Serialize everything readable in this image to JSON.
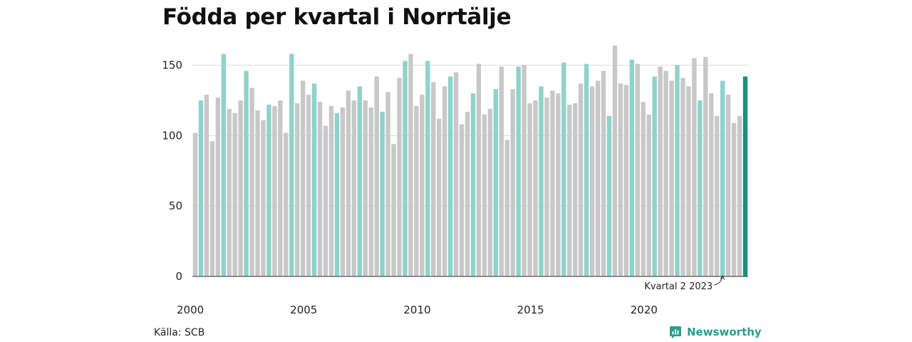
{
  "chart_data": {
    "type": "bar",
    "title": "Födda per kvartal i Norrtälje",
    "xlabel": "",
    "ylabel": "",
    "ylim": [
      0,
      170
    ],
    "y_ticks": [
      0,
      50,
      100,
      150
    ],
    "x_tick_labels": [
      "2000",
      "2005",
      "2010",
      "2015",
      "2020"
    ],
    "grid": true,
    "source": "Källa: SCB",
    "annotation": "Kvartal 2 2023",
    "colors": {
      "q2": "#8dd3cc",
      "other": "#c8c8c8",
      "latest": "#1a8f80",
      "grid": "#dddddd",
      "axis": "#333333"
    },
    "periods": [
      {
        "year": 2000,
        "quarter": 1,
        "value": 102
      },
      {
        "year": 2000,
        "quarter": 2,
        "value": 125
      },
      {
        "year": 2000,
        "quarter": 3,
        "value": 129
      },
      {
        "year": 2000,
        "quarter": 4,
        "value": 96
      },
      {
        "year": 2001,
        "quarter": 1,
        "value": 127
      },
      {
        "year": 2001,
        "quarter": 2,
        "value": 158
      },
      {
        "year": 2001,
        "quarter": 3,
        "value": 119
      },
      {
        "year": 2001,
        "quarter": 4,
        "value": 116
      },
      {
        "year": 2002,
        "quarter": 1,
        "value": 125
      },
      {
        "year": 2002,
        "quarter": 2,
        "value": 146
      },
      {
        "year": 2002,
        "quarter": 3,
        "value": 134
      },
      {
        "year": 2002,
        "quarter": 4,
        "value": 118
      },
      {
        "year": 2003,
        "quarter": 1,
        "value": 111
      },
      {
        "year": 2003,
        "quarter": 2,
        "value": 122
      },
      {
        "year": 2003,
        "quarter": 3,
        "value": 121
      },
      {
        "year": 2003,
        "quarter": 4,
        "value": 125
      },
      {
        "year": 2004,
        "quarter": 1,
        "value": 102
      },
      {
        "year": 2004,
        "quarter": 2,
        "value": 158
      },
      {
        "year": 2004,
        "quarter": 3,
        "value": 123
      },
      {
        "year": 2004,
        "quarter": 4,
        "value": 139
      },
      {
        "year": 2005,
        "quarter": 1,
        "value": 129
      },
      {
        "year": 2005,
        "quarter": 2,
        "value": 137
      },
      {
        "year": 2005,
        "quarter": 3,
        "value": 124
      },
      {
        "year": 2005,
        "quarter": 4,
        "value": 107
      },
      {
        "year": 2006,
        "quarter": 1,
        "value": 121
      },
      {
        "year": 2006,
        "quarter": 2,
        "value": 116
      },
      {
        "year": 2006,
        "quarter": 3,
        "value": 120
      },
      {
        "year": 2006,
        "quarter": 4,
        "value": 132
      },
      {
        "year": 2007,
        "quarter": 1,
        "value": 125
      },
      {
        "year": 2007,
        "quarter": 2,
        "value": 135
      },
      {
        "year": 2007,
        "quarter": 3,
        "value": 125
      },
      {
        "year": 2007,
        "quarter": 4,
        "value": 120
      },
      {
        "year": 2008,
        "quarter": 1,
        "value": 142
      },
      {
        "year": 2008,
        "quarter": 2,
        "value": 117
      },
      {
        "year": 2008,
        "quarter": 3,
        "value": 131
      },
      {
        "year": 2008,
        "quarter": 4,
        "value": 94
      },
      {
        "year": 2009,
        "quarter": 1,
        "value": 141
      },
      {
        "year": 2009,
        "quarter": 2,
        "value": 153
      },
      {
        "year": 2009,
        "quarter": 3,
        "value": 158
      },
      {
        "year": 2009,
        "quarter": 4,
        "value": 121
      },
      {
        "year": 2010,
        "quarter": 1,
        "value": 129
      },
      {
        "year": 2010,
        "quarter": 2,
        "value": 153
      },
      {
        "year": 2010,
        "quarter": 3,
        "value": 138
      },
      {
        "year": 2010,
        "quarter": 4,
        "value": 112
      },
      {
        "year": 2011,
        "quarter": 1,
        "value": 135
      },
      {
        "year": 2011,
        "quarter": 2,
        "value": 142
      },
      {
        "year": 2011,
        "quarter": 3,
        "value": 145
      },
      {
        "year": 2011,
        "quarter": 4,
        "value": 108
      },
      {
        "year": 2012,
        "quarter": 1,
        "value": 117
      },
      {
        "year": 2012,
        "quarter": 2,
        "value": 130
      },
      {
        "year": 2012,
        "quarter": 3,
        "value": 151
      },
      {
        "year": 2012,
        "quarter": 4,
        "value": 115
      },
      {
        "year": 2013,
        "quarter": 1,
        "value": 119
      },
      {
        "year": 2013,
        "quarter": 2,
        "value": 133
      },
      {
        "year": 2013,
        "quarter": 3,
        "value": 149
      },
      {
        "year": 2013,
        "quarter": 4,
        "value": 97
      },
      {
        "year": 2014,
        "quarter": 1,
        "value": 133
      },
      {
        "year": 2014,
        "quarter": 2,
        "value": 149
      },
      {
        "year": 2014,
        "quarter": 3,
        "value": 150
      },
      {
        "year": 2014,
        "quarter": 4,
        "value": 123
      },
      {
        "year": 2015,
        "quarter": 1,
        "value": 125
      },
      {
        "year": 2015,
        "quarter": 2,
        "value": 135
      },
      {
        "year": 2015,
        "quarter": 3,
        "value": 127
      },
      {
        "year": 2015,
        "quarter": 4,
        "value": 132
      },
      {
        "year": 2016,
        "quarter": 1,
        "value": 130
      },
      {
        "year": 2016,
        "quarter": 2,
        "value": 152
      },
      {
        "year": 2016,
        "quarter": 3,
        "value": 122
      },
      {
        "year": 2016,
        "quarter": 4,
        "value": 123
      },
      {
        "year": 2017,
        "quarter": 1,
        "value": 137
      },
      {
        "year": 2017,
        "quarter": 2,
        "value": 151
      },
      {
        "year": 2017,
        "quarter": 3,
        "value": 135
      },
      {
        "year": 2017,
        "quarter": 4,
        "value": 139
      },
      {
        "year": 2018,
        "quarter": 1,
        "value": 146
      },
      {
        "year": 2018,
        "quarter": 2,
        "value": 114
      },
      {
        "year": 2018,
        "quarter": 3,
        "value": 164
      },
      {
        "year": 2018,
        "quarter": 4,
        "value": 137
      },
      {
        "year": 2019,
        "quarter": 1,
        "value": 136
      },
      {
        "year": 2019,
        "quarter": 2,
        "value": 154
      },
      {
        "year": 2019,
        "quarter": 3,
        "value": 151
      },
      {
        "year": 2019,
        "quarter": 4,
        "value": 124
      },
      {
        "year": 2020,
        "quarter": 1,
        "value": 115
      },
      {
        "year": 2020,
        "quarter": 2,
        "value": 142
      },
      {
        "year": 2020,
        "quarter": 3,
        "value": 149
      },
      {
        "year": 2020,
        "quarter": 4,
        "value": 146
      },
      {
        "year": 2021,
        "quarter": 1,
        "value": 139
      },
      {
        "year": 2021,
        "quarter": 2,
        "value": 150
      },
      {
        "year": 2021,
        "quarter": 3,
        "value": 141
      },
      {
        "year": 2021,
        "quarter": 4,
        "value": 135
      },
      {
        "year": 2022,
        "quarter": 1,
        "value": 155
      },
      {
        "year": 2022,
        "quarter": 2,
        "value": 125
      },
      {
        "year": 2022,
        "quarter": 3,
        "value": 156
      },
      {
        "year": 2022,
        "quarter": 4,
        "value": 130
      },
      {
        "year": 2023,
        "quarter": 1,
        "value": 114
      },
      {
        "year": 2023,
        "quarter": 2,
        "value": 139
      },
      {
        "year": 2023,
        "quarter": 3,
        "value": 129
      },
      {
        "year": 2023,
        "quarter": 4,
        "value": 109
      },
      {
        "year": 2024,
        "quarter": 1,
        "value": 114
      },
      {
        "year": 2024,
        "quarter": 2,
        "value": 142
      }
    ]
  },
  "brand": {
    "name": "Newsworthy",
    "icon": "newsworthy-logo-icon"
  }
}
